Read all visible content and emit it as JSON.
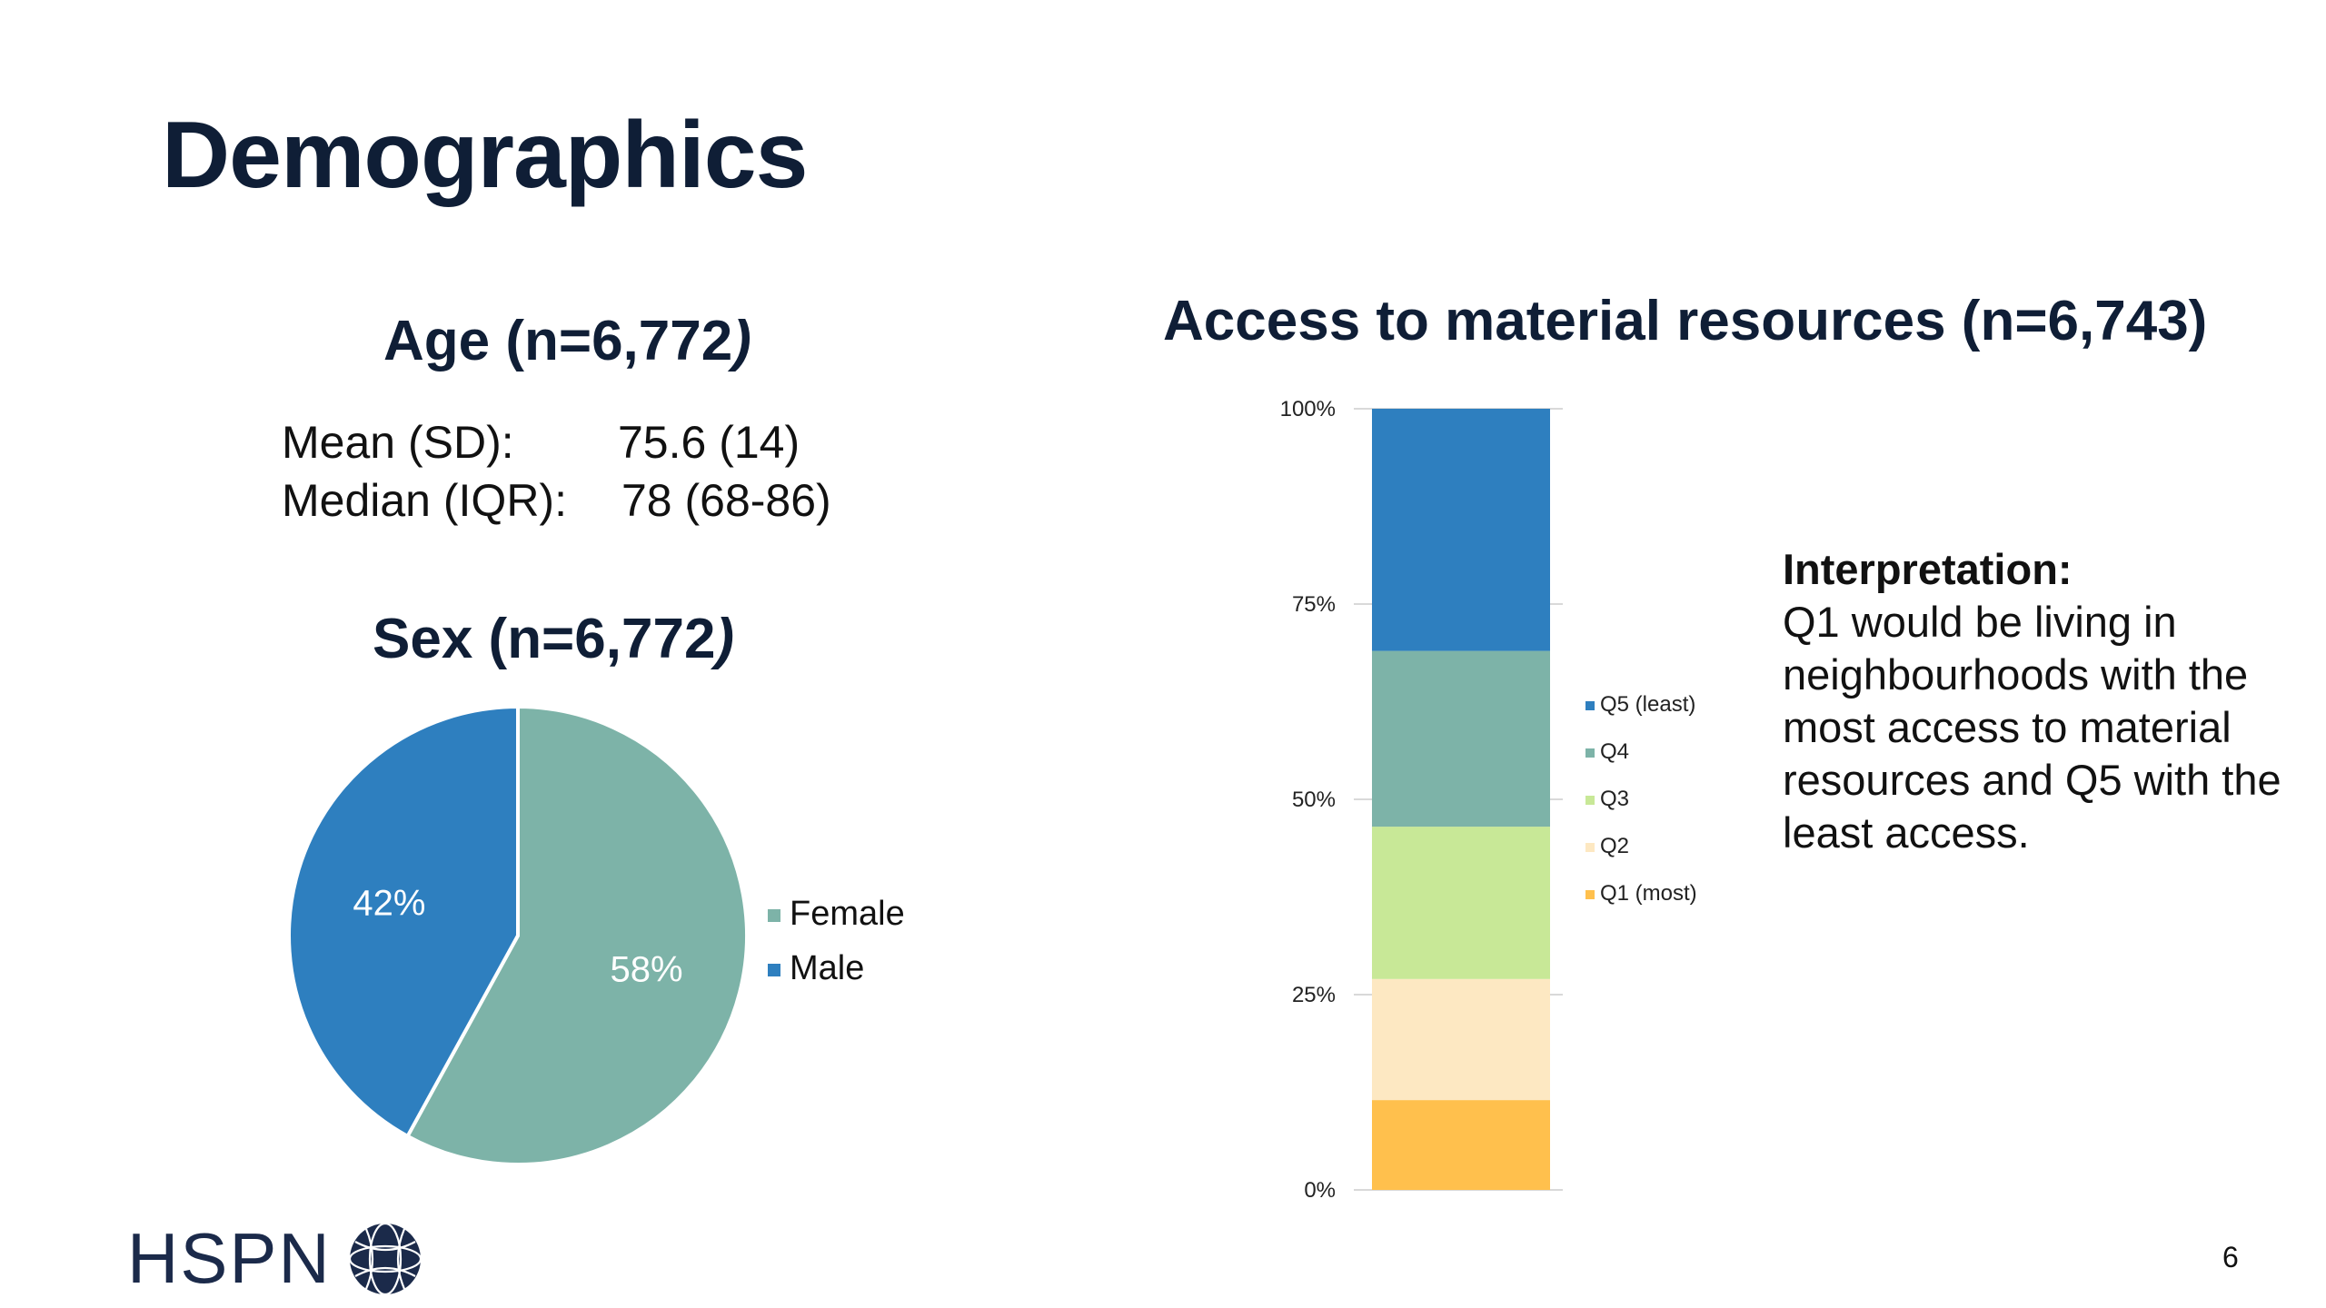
{
  "slide": {
    "title": "Demographics",
    "page_number": "6",
    "logo_text": "HSPN"
  },
  "age": {
    "title": "Age (n=6,772",
    "title_paren": ")",
    "mean_label": "Mean (SD):",
    "mean_value": "75.6 (14)",
    "median_label": "Median (IQR):",
    "median_value": "78 (68-86)"
  },
  "sex": {
    "title": "Sex (n=6,772",
    "title_paren": ")"
  },
  "resources": {
    "title": "Access to material resources (n=6,743)"
  },
  "interpretation": {
    "heading": "Interpretation:",
    "body": "Q1 would be living in neighbourhoods with the most access to material resources and Q5 with the least access."
  },
  "colors": {
    "female": "#7db3a8",
    "male": "#2e7fbf",
    "q1": "#ffc04d",
    "q2": "#fde8c2",
    "q3": "#c8e897",
    "q4": "#7db3a8",
    "q5": "#2e7fbf",
    "title": "#0f1e36"
  },
  "chart_data": [
    {
      "type": "pie",
      "slices": [
        {
          "label": "Female",
          "value": 58,
          "display": "58%",
          "color": "#7db3a8"
        },
        {
          "label": "Male",
          "value": 42,
          "display": "42%",
          "color": "#2e7fbf"
        }
      ],
      "legend": [
        "Female",
        "Male"
      ],
      "legend_position": "right"
    },
    {
      "type": "bar",
      "stacked": true,
      "categories": [
        ""
      ],
      "series": [
        {
          "name": "Q1 (most)",
          "values": [
            11.5
          ],
          "color": "#ffc04d"
        },
        {
          "name": "Q2",
          "values": [
            15.5
          ],
          "color": "#fde8c2"
        },
        {
          "name": "Q3",
          "values": [
            19.5
          ],
          "color": "#c8e897"
        },
        {
          "name": "Q4",
          "values": [
            22.5
          ],
          "color": "#7db3a8"
        },
        {
          "name": "Q5 (least)",
          "values": [
            31
          ],
          "color": "#2e7fbf"
        }
      ],
      "yticks": [
        "0%",
        "25%",
        "50%",
        "75%",
        "100%"
      ],
      "ylim": [
        0,
        100
      ],
      "legend": [
        "Q5 (least)",
        "Q4",
        "Q3",
        "Q2",
        "Q1 (most)"
      ],
      "legend_position": "right",
      "grid": false
    }
  ]
}
